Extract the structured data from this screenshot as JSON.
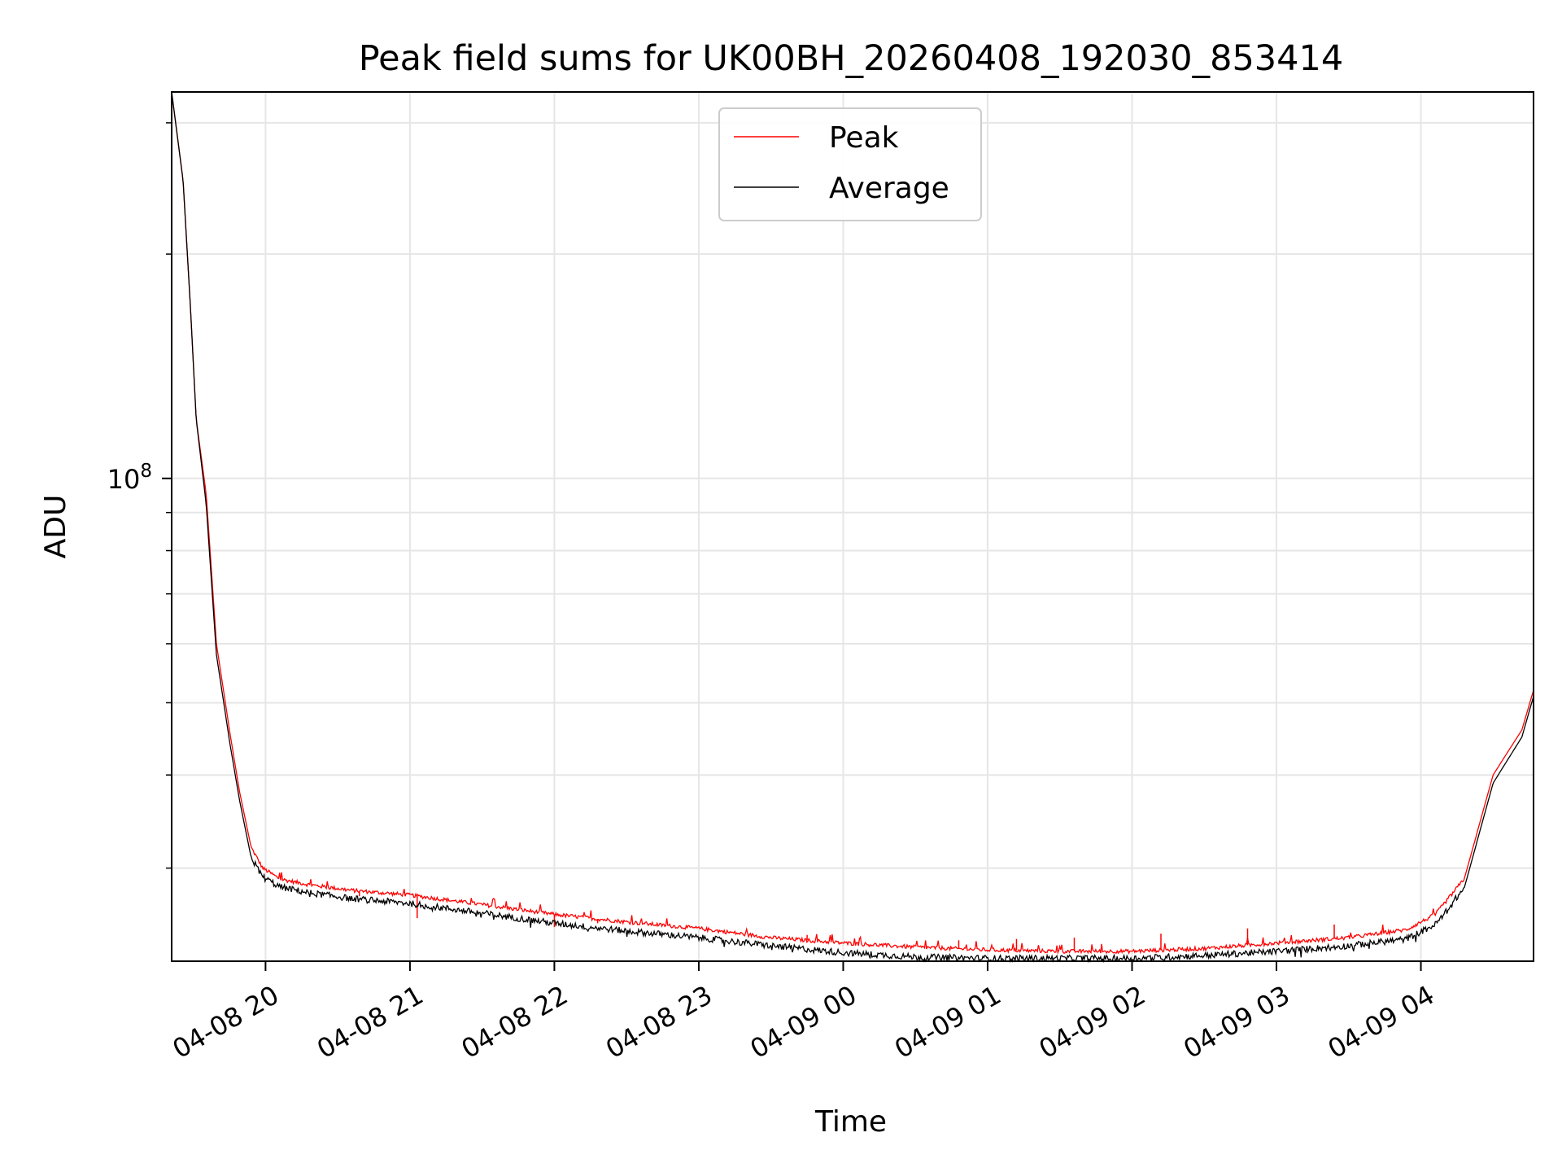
{
  "chart_data": {
    "type": "line",
    "title": "Peak field sums for UK00BH_20260408_192030_853414",
    "xlabel": "Time",
    "ylabel": "ADU",
    "yscale": "log",
    "grid": true,
    "legend_position": "top-center",
    "x_ticks": [
      "04-08 20",
      "04-08 21",
      "04-08 22",
      "04-08 23",
      "04-09 00",
      "04-09 01",
      "04-09 02",
      "04-09 03",
      "04-09 04"
    ],
    "y_tick_label": {
      "base": "10",
      "exponent": "8"
    },
    "x_range_hours": [
      -0.65,
      8.78
    ],
    "ylim": [
      22500000,
      330000000
    ],
    "x_unit": "hours since 04-08 20:00",
    "series": [
      {
        "name": "Peak",
        "color": "#ff0000",
        "points": [
          [
            -0.65,
            330000000
          ],
          [
            -0.57,
            250000000
          ],
          [
            -0.52,
            170000000
          ],
          [
            -0.48,
            120000000
          ],
          [
            -0.41,
            95000000
          ],
          [
            -0.34,
            60000000
          ],
          [
            -0.25,
            46000000
          ],
          [
            -0.18,
            38000000
          ],
          [
            -0.1,
            32000000
          ],
          [
            -0.02,
            30000000
          ],
          [
            0.1,
            29000000
          ],
          [
            0.3,
            28500000
          ],
          [
            0.6,
            28000000
          ],
          [
            1.0,
            27600000
          ],
          [
            1.5,
            26800000
          ],
          [
            2.0,
            26000000
          ],
          [
            2.5,
            25400000
          ],
          [
            3.0,
            24900000
          ],
          [
            3.5,
            24200000
          ],
          [
            4.0,
            23800000
          ],
          [
            4.5,
            23500000
          ],
          [
            5.0,
            23300000
          ],
          [
            5.5,
            23200000
          ],
          [
            6.0,
            23200000
          ],
          [
            6.5,
            23400000
          ],
          [
            7.0,
            23800000
          ],
          [
            7.5,
            24200000
          ],
          [
            7.9,
            24800000
          ],
          [
            8.1,
            26000000
          ],
          [
            8.3,
            29000000
          ],
          [
            8.5,
            40000000
          ],
          [
            8.7,
            46000000
          ],
          [
            8.78,
            52000000
          ]
        ],
        "spikes": [
          [
            0.65,
            27500000
          ],
          [
            1.05,
            25700000
          ],
          [
            2.0,
            25000000
          ],
          [
            2.3,
            25300000
          ],
          [
            3.75,
            24400000
          ],
          [
            4.8,
            24000000
          ],
          [
            5.2,
            24100000
          ],
          [
            5.6,
            24200000
          ],
          [
            6.2,
            24500000
          ],
          [
            6.8,
            24900000
          ],
          [
            7.4,
            25200000
          ]
        ]
      },
      {
        "name": "Average",
        "color": "#000000",
        "points": [
          [
            -0.65,
            330000000
          ],
          [
            -0.57,
            250000000
          ],
          [
            -0.52,
            170000000
          ],
          [
            -0.48,
            120000000
          ],
          [
            -0.41,
            92000000
          ],
          [
            -0.34,
            58000000
          ],
          [
            -0.25,
            44500000
          ],
          [
            -0.18,
            37000000
          ],
          [
            -0.1,
            31000000
          ],
          [
            -0.02,
            29200000
          ],
          [
            0.1,
            28300000
          ],
          [
            0.3,
            27800000
          ],
          [
            0.6,
            27300000
          ],
          [
            1.0,
            26900000
          ],
          [
            1.5,
            26100000
          ],
          [
            2.0,
            25300000
          ],
          [
            2.5,
            24700000
          ],
          [
            3.0,
            24200000
          ],
          [
            3.5,
            23600000
          ],
          [
            4.0,
            23100000
          ],
          [
            4.5,
            22800000
          ],
          [
            5.0,
            22700000
          ],
          [
            5.5,
            22700000
          ],
          [
            6.0,
            22700000
          ],
          [
            6.5,
            22900000
          ],
          [
            7.0,
            23200000
          ],
          [
            7.5,
            23600000
          ],
          [
            7.9,
            24100000
          ],
          [
            8.1,
            25200000
          ],
          [
            8.3,
            28200000
          ],
          [
            8.5,
            39000000
          ],
          [
            8.7,
            45000000
          ],
          [
            8.78,
            51000000
          ]
        ]
      }
    ]
  }
}
